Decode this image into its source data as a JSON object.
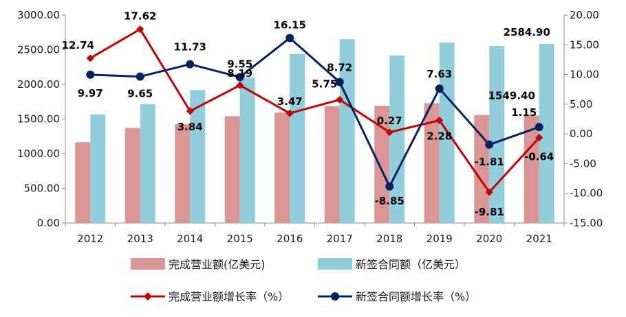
{
  "chart_data": {
    "type": "bar",
    "categories": [
      "2012",
      "2013",
      "2014",
      "2015",
      "2016",
      "2017",
      "2018",
      "2019",
      "2020",
      "2021"
    ],
    "series": [
      {
        "name": "完成营业额(亿美元)",
        "kind": "bar",
        "axis": "left",
        "color": "#D99694",
        "values": [
          1166,
          1371,
          1424,
          1541,
          1594,
          1686,
          1690,
          1729,
          1559,
          1549.4
        ]
      },
      {
        "name": "新签合同额（亿美元）",
        "kind": "bar",
        "axis": "left",
        "color": "#92CDDC",
        "values": [
          1565,
          1716,
          1918,
          2101,
          2440,
          2653,
          2418,
          2602,
          2555,
          2584.9
        ]
      },
      {
        "name": "完成营业额增长率（%）",
        "kind": "line",
        "axis": "right",
        "color": "#C00000",
        "marker": "diamond",
        "values": [
          12.74,
          17.62,
          3.84,
          8.19,
          3.47,
          5.75,
          0.27,
          2.28,
          -9.81,
          -0.64
        ],
        "labels": [
          "12.74",
          "17.62",
          "3.84",
          "8.19",
          "3.47",
          "5.75",
          "0.27",
          "2.28",
          "-9.81",
          "-0.64"
        ]
      },
      {
        "name": "新签合同额增长率（%）",
        "kind": "line",
        "axis": "right",
        "color": "#002060",
        "marker": "circle",
        "values": [
          9.97,
          9.65,
          11.73,
          9.55,
          16.15,
          8.72,
          -8.85,
          7.63,
          -1.81,
          1.15
        ],
        "labels": [
          "9.97",
          "9.65",
          "11.73",
          "9.55",
          "16.15",
          "8.72",
          "-8.85",
          "7.63",
          "-1.81",
          "1.15"
        ]
      }
    ],
    "bar_value_labels": [
      {
        "series": 0,
        "index": 9,
        "text": "1549.40"
      },
      {
        "series": 1,
        "index": 9,
        "text": "2584.90"
      }
    ],
    "left_axis": {
      "ylim": [
        0,
        3000
      ],
      "ticks": [
        "0.00",
        "500.00",
        "1000.00",
        "1500.00",
        "2000.00",
        "2500.00",
        "3000.00"
      ]
    },
    "right_axis": {
      "ylim": [
        -15,
        20
      ],
      "ticks": [
        "-15.00",
        "-10.00",
        "-5.00",
        "0.00",
        "5.00",
        "10.00",
        "15.00",
        "20.00"
      ]
    },
    "grid": false,
    "legend_position": "bottom",
    "title": "",
    "xlabel": "",
    "ylabel": ""
  }
}
